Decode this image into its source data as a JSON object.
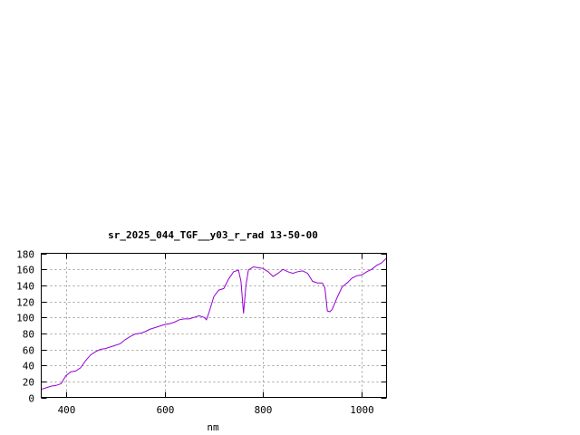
{
  "chart_data": {
    "type": "line",
    "title": "sr_2025_044_TGF__y03_r_rad 13-50-00",
    "xlabel": "nm",
    "ylabel": "",
    "xlim": [
      350,
      1050
    ],
    "ylim": [
      0,
      180
    ],
    "xticks": [
      400,
      600,
      800,
      1000
    ],
    "yticks": [
      0,
      20,
      40,
      60,
      80,
      100,
      120,
      140,
      160,
      180
    ],
    "grid": true,
    "series": [
      {
        "color": "#9400d3",
        "x": [
          350,
          360,
          370,
          380,
          390,
          400,
          410,
          420,
          430,
          440,
          450,
          460,
          470,
          480,
          490,
          500,
          510,
          520,
          530,
          540,
          550,
          560,
          570,
          580,
          590,
          600,
          610,
          620,
          630,
          640,
          650,
          660,
          670,
          680,
          685,
          690,
          700,
          710,
          720,
          730,
          740,
          750,
          755,
          760,
          765,
          770,
          780,
          790,
          800,
          810,
          820,
          830,
          840,
          850,
          860,
          870,
          880,
          890,
          900,
          910,
          920,
          925,
          930,
          935,
          940,
          950,
          960,
          970,
          980,
          990,
          1000,
          1010,
          1020,
          1030,
          1040,
          1050
        ],
        "y": [
          10,
          12,
          14,
          15,
          17,
          27,
          32,
          33,
          37,
          46,
          53,
          57,
          60,
          61,
          63,
          65,
          67,
          72,
          76,
          79,
          80,
          82,
          85,
          87,
          89,
          91,
          92,
          94,
          97,
          98,
          98,
          100,
          102,
          100,
          97,
          106,
          126,
          134,
          136,
          148,
          157,
          159,
          145,
          105,
          140,
          159,
          163,
          162,
          161,
          157,
          151,
          155,
          160,
          157,
          155,
          157,
          158,
          155,
          145,
          143,
          143,
          137,
          108,
          107,
          110,
          125,
          138,
          143,
          149,
          152,
          153,
          157,
          160,
          165,
          168,
          174
        ]
      }
    ]
  }
}
